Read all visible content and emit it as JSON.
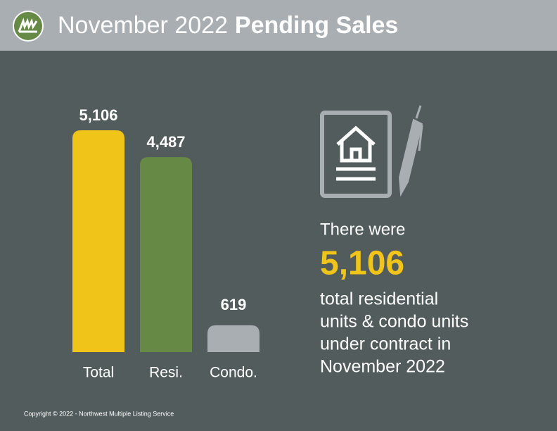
{
  "header": {
    "title_regular": "November 2022",
    "title_bold": "Pending Sales"
  },
  "chart_data": {
    "type": "bar",
    "categories": [
      "Total",
      "Resi.",
      "Condo."
    ],
    "values": [
      5106,
      4487,
      619
    ],
    "value_labels": [
      "5,106",
      "4,487",
      "619"
    ],
    "colors": [
      "#f0c419",
      "#668a45",
      "#a9aeb3"
    ]
  },
  "callout": {
    "intro": "There were",
    "highlight": "5,106",
    "lines": [
      "total residential",
      "units & condo units",
      "under contract in",
      "November 2022"
    ]
  },
  "footer": "Copyright © 2022 - Northwest Multiple Listing Service"
}
